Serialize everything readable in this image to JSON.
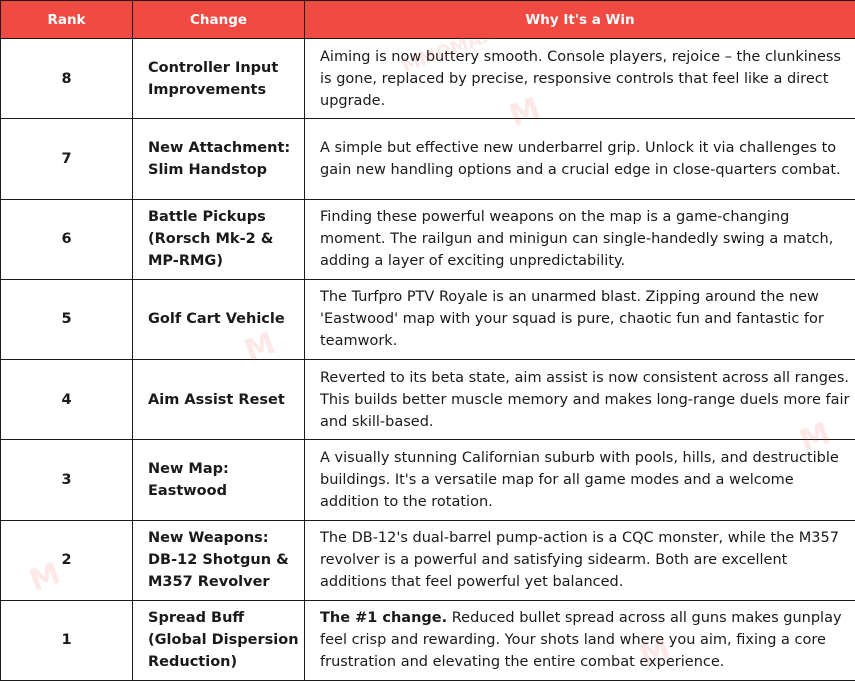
{
  "header": {
    "rank": "Rank",
    "change": "Change",
    "why": "Why It's a Win"
  },
  "rows": [
    {
      "rank": "8",
      "change": "Controller Input Improvements",
      "highlight": "",
      "why": "Aiming is now buttery smooth. Console players, rejoice – the clunkiness is gone, replaced by precise, responsive controls that feel like a direct upgrade."
    },
    {
      "rank": "7",
      "change": "New Attachment: Slim Handstop",
      "highlight": "",
      "why": "A simple but effective new underbarrel grip. Unlock it via challenges to gain new handling options and a crucial edge in close-quarters combat."
    },
    {
      "rank": "6",
      "change": "Battle Pickups (Rorsch Mk-2 & MP-RMG)",
      "highlight": "",
      "why": "Finding these powerful weapons on the map is a game-changing moment. The railgun and minigun can single-handedly swing a match, adding a layer of exciting unpredictability."
    },
    {
      "rank": "5",
      "change": "Golf Cart Vehicle",
      "highlight": "",
      "why": "The Turfpro PTV Royale is an unarmed blast. Zipping around the new 'Eastwood' map with your squad is pure, chaotic fun and fantastic for teamwork."
    },
    {
      "rank": "4",
      "change": "Aim Assist Reset",
      "highlight": "",
      "why": "Reverted to its beta state, aim assist is now consistent across all ranges. This builds better muscle memory and makes long-range duels more fair and skill-based."
    },
    {
      "rank": "3",
      "change": "New Map: Eastwood",
      "highlight": "",
      "why": "A visually stunning Californian suburb with pools, hills, and destructible buildings. It's a versatile map for all game modes and a welcome addition to the rotation."
    },
    {
      "rank": "2",
      "change": "New Weapons: DB-12 Shotgun & M357 Revolver",
      "highlight": "",
      "why": "The DB-12's dual-barrel pump-action is a CQC monster, while the M357 revolver is a powerful and satisfying sidearm. Both are excellent additions that feel powerful yet balanced."
    },
    {
      "rank": "1",
      "change": "Spread Buff (Global Dispersion Reduction)",
      "highlight": "The #1 change.",
      "why": " Reduced bullet spread across all guns makes gunplay feel crisp and rewarding. Your shots land where you aim, fixing a core frustration and elevating the entire combat experience."
    }
  ],
  "watermark": {
    "text": "MMOMAX",
    "mark": "M",
    "color": "#f04a43"
  }
}
